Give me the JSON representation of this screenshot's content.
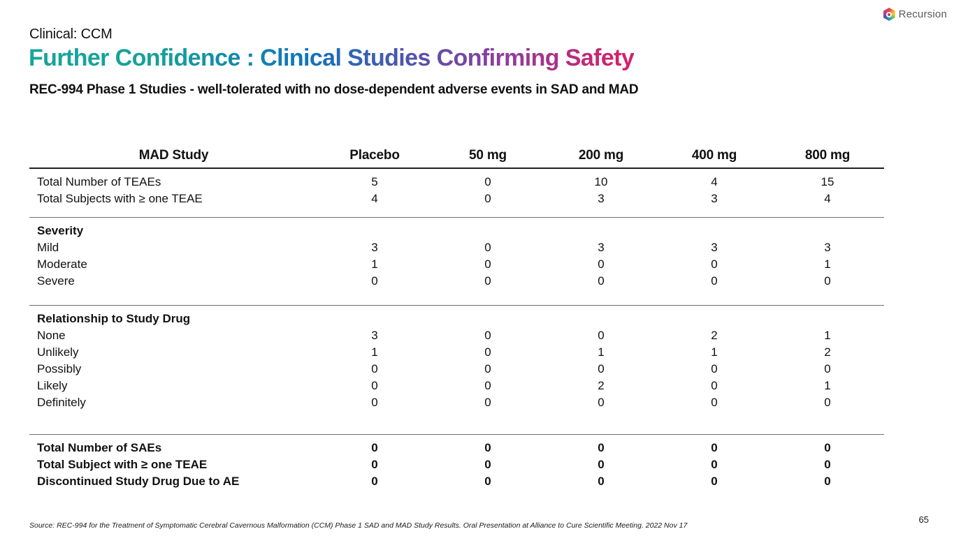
{
  "slide": {
    "eyebrow": "Clinical: CCM",
    "subtitle": "REC-994 Phase 1 Studies - well-tolerated with no dose-dependent adverse events in SAD and MAD",
    "source": "Source: REC-994 for the Treatment of Symptomatic Cerebral Cavernous Malformation (CCM) Phase 1 SAD and MAD Study Results. Oral Presentation at Alliance to Cure Scientific Meeting. 2022 Nov 17",
    "page_number": "65"
  },
  "title": {
    "text": "Further Confidence : Clinical Studies Confirming Safety",
    "gradient": [
      {
        "color": "#16a59b",
        "stop": "0%"
      },
      {
        "color": "#16a098",
        "stop": "22%"
      },
      {
        "color": "#0e76bc",
        "stop": "45%"
      },
      {
        "color": "#4e55ab",
        "stop": "62%"
      },
      {
        "color": "#8c3d9e",
        "stop": "78%"
      },
      {
        "color": "#d2226b",
        "stop": "97%"
      }
    ]
  },
  "logo": {
    "text": "Recursion",
    "text_color": "#58595b"
  },
  "table": {
    "headers": [
      "MAD Study",
      "Placebo",
      "50 mg",
      "200 mg",
      "400 mg",
      "800 mg"
    ],
    "sections": [
      {
        "rows": [
          {
            "label": "Total Number of TEAEs",
            "bold": false,
            "values": [
              "5",
              "0",
              "10",
              "4",
              "15"
            ]
          },
          {
            "label": "Total Subjects with ≥ one TEAE",
            "bold": false,
            "values": [
              "4",
              "0",
              "3",
              "3",
              "4"
            ]
          }
        ]
      },
      {
        "rows": [
          {
            "label": "Severity",
            "bold": true,
            "values": [
              "",
              "",
              "",
              "",
              ""
            ]
          },
          {
            "label": "Mild",
            "bold": false,
            "values": [
              "3",
              "0",
              "3",
              "3",
              "3"
            ]
          },
          {
            "label": "Moderate",
            "bold": false,
            "values": [
              "1",
              "0",
              "0",
              "0",
              "1"
            ]
          },
          {
            "label": "Severe",
            "bold": false,
            "values": [
              "0",
              "0",
              "0",
              "0",
              "0"
            ]
          }
        ]
      },
      {
        "rows": [
          {
            "label": "Relationship to Study Drug",
            "bold": true,
            "values": [
              "",
              "",
              "",
              "",
              ""
            ]
          },
          {
            "label": "None",
            "bold": false,
            "values": [
              "3",
              "0",
              "0",
              "2",
              "1"
            ]
          },
          {
            "label": "Unlikely",
            "bold": false,
            "values": [
              "1",
              "0",
              "1",
              "1",
              "2"
            ]
          },
          {
            "label": "Possibly",
            "bold": false,
            "values": [
              "0",
              "0",
              "0",
              "0",
              "0"
            ]
          },
          {
            "label": "Likely",
            "bold": false,
            "values": [
              "0",
              "0",
              "2",
              "0",
              "1"
            ]
          },
          {
            "label": "Definitely",
            "bold": false,
            "values": [
              "0",
              "0",
              "0",
              "0",
              "0"
            ]
          }
        ]
      },
      {
        "rows": [
          {
            "label": "Total Number of SAEs",
            "bold": true,
            "values": [
              "0",
              "0",
              "0",
              "0",
              "0"
            ]
          },
          {
            "label": "Total Subject with ≥ one TEAE",
            "bold": true,
            "values": [
              "0",
              "0",
              "0",
              "0",
              "0"
            ]
          },
          {
            "label": "Discontinued Study Drug Due to AE",
            "bold": true,
            "values": [
              "0",
              "0",
              "0",
              "0",
              "0"
            ]
          }
        ]
      }
    ]
  }
}
